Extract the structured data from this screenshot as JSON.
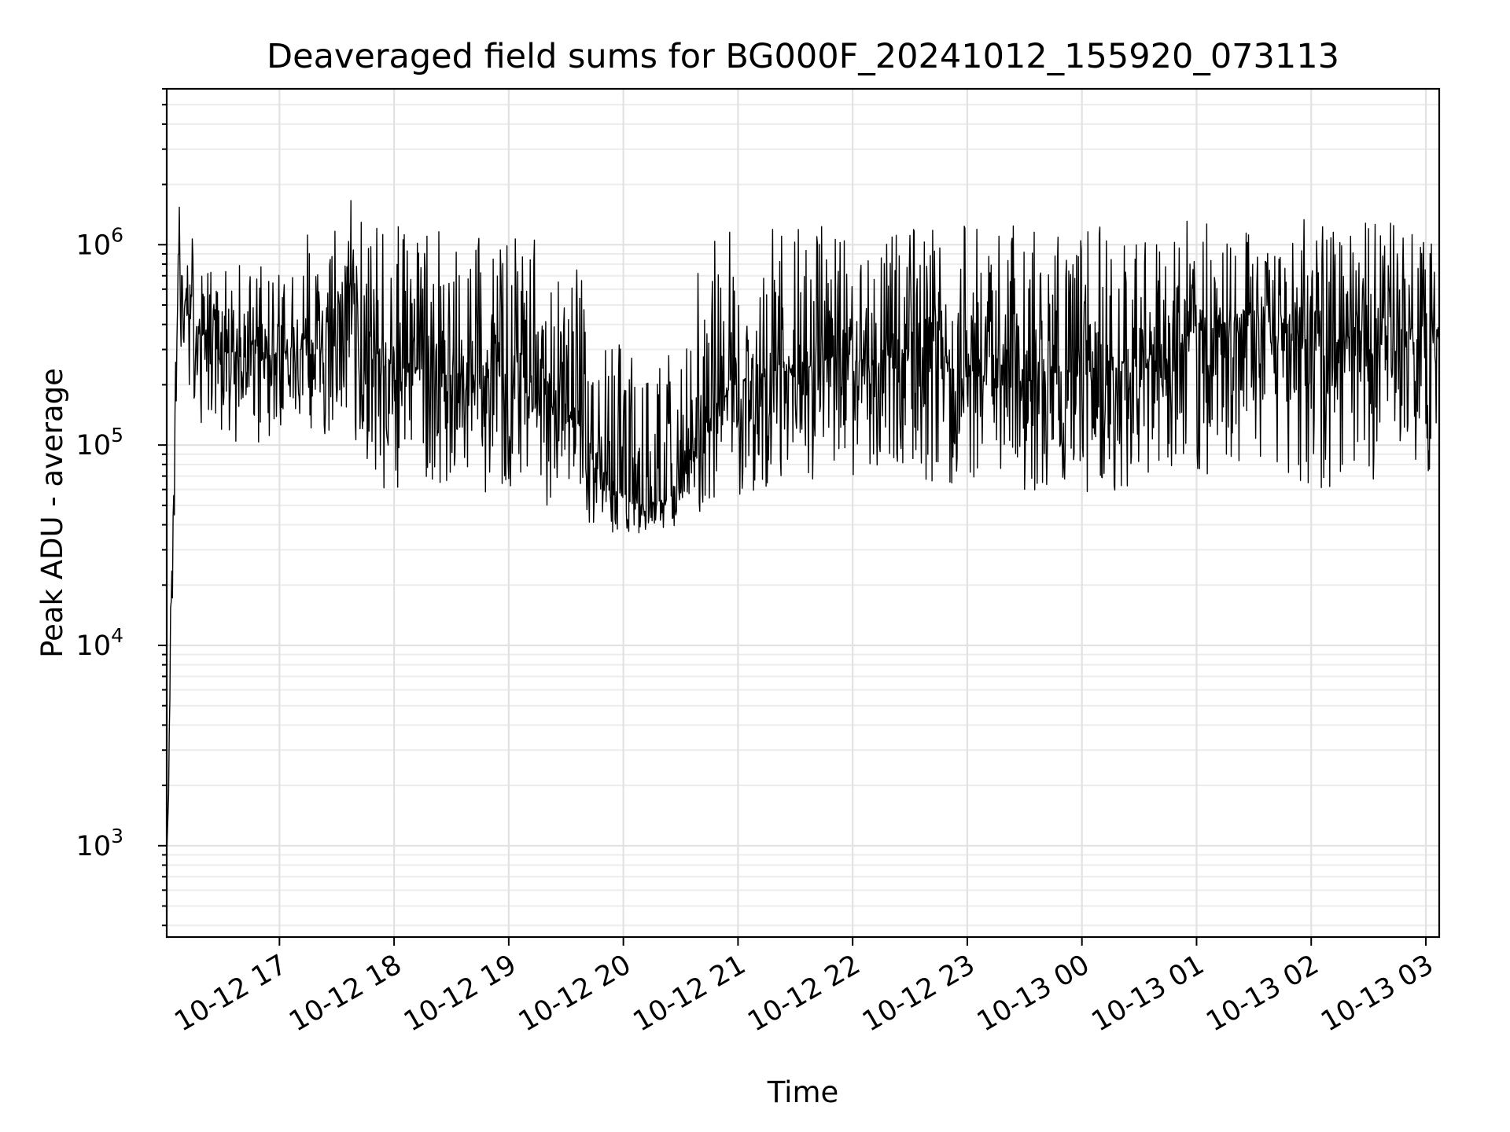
{
  "chart_data": {
    "type": "line",
    "title": "Deaveraged field sums for BG000F_20241012_155920_073113",
    "xlabel": "Time",
    "ylabel": "Peak ADU - average",
    "yscale": "log",
    "ylim": [
      350,
      6000000
    ],
    "xlim": [
      "2024-10-12 16:01",
      "2024-10-13 03:07"
    ],
    "grid": true,
    "line_color": "#000000",
    "x_ticks": [
      {
        "time": "2024-10-12 17:00",
        "label": "10-12 17"
      },
      {
        "time": "2024-10-12 18:00",
        "label": "10-12 18"
      },
      {
        "time": "2024-10-12 19:00",
        "label": "10-12 19"
      },
      {
        "time": "2024-10-12 20:00",
        "label": "10-12 20"
      },
      {
        "time": "2024-10-12 21:00",
        "label": "10-12 21"
      },
      {
        "time": "2024-10-12 22:00",
        "label": "10-12 22"
      },
      {
        "time": "2024-10-12 23:00",
        "label": "10-12 23"
      },
      {
        "time": "2024-10-13 00:00",
        "label": "10-13 00"
      },
      {
        "time": "2024-10-13 01:00",
        "label": "10-13 01"
      },
      {
        "time": "2024-10-13 02:00",
        "label": "10-13 02"
      },
      {
        "time": "2024-10-13 03:00",
        "label": "10-13 03"
      }
    ],
    "y_ticks": [
      {
        "value": 1000,
        "base": "10",
        "exp": "3"
      },
      {
        "value": 10000,
        "base": "10",
        "exp": "4"
      },
      {
        "value": 100000,
        "base": "10",
        "exp": "5"
      },
      {
        "value": 1000000,
        "base": "10",
        "exp": "6"
      }
    ],
    "series": [
      {
        "x": [
          "2024-10-12 16:01",
          "2024-10-12 16:02",
          "2024-10-12 16:03",
          "2024-10-12 16:05",
          "2024-10-12 16:07",
          "2024-10-12 16:10",
          "2024-10-12 16:15",
          "2024-10-12 16:20",
          "2024-10-12 16:26",
          "2024-10-12 16:30",
          "2024-10-12 16:35",
          "2024-10-12 16:40",
          "2024-10-12 16:45",
          "2024-10-12 16:50",
          "2024-10-12 16:55",
          "2024-10-12 17:00",
          "2024-10-12 17:05",
          "2024-10-12 17:10",
          "2024-10-12 17:15",
          "2024-10-12 17:20",
          "2024-10-12 17:25",
          "2024-10-12 17:30",
          "2024-10-12 17:35",
          "2024-10-12 17:38",
          "2024-10-12 17:40",
          "2024-10-12 17:45",
          "2024-10-12 17:50",
          "2024-10-12 17:55",
          "2024-10-12 18:00",
          "2024-10-12 18:10",
          "2024-10-12 18:20",
          "2024-10-12 18:30",
          "2024-10-12 18:40",
          "2024-10-12 18:50",
          "2024-10-12 19:00",
          "2024-10-12 19:10",
          "2024-10-12 19:20",
          "2024-10-12 19:30",
          "2024-10-12 19:40",
          "2024-10-12 19:50",
          "2024-10-12 20:00",
          "2024-10-12 20:10",
          "2024-10-12 20:20",
          "2024-10-12 20:30",
          "2024-10-12 20:40",
          "2024-10-12 20:50",
          "2024-10-12 21:00",
          "2024-10-12 21:15",
          "2024-10-12 21:30",
          "2024-10-12 21:45",
          "2024-10-12 22:00",
          "2024-10-12 22:15",
          "2024-10-12 22:30",
          "2024-10-12 22:45",
          "2024-10-12 23:00",
          "2024-10-12 23:15",
          "2024-10-12 23:30",
          "2024-10-12 23:45",
          "2024-10-13 00:00",
          "2024-10-13 00:15",
          "2024-10-13 00:30",
          "2024-10-13 00:45",
          "2024-10-13 01:00",
          "2024-10-13 01:15",
          "2024-10-13 01:30",
          "2024-10-13 01:45",
          "2024-10-13 02:00",
          "2024-10-13 02:15",
          "2024-10-13 02:30",
          "2024-10-13 02:45",
          "2024-10-13 03:00",
          "2024-10-13 03:07"
        ],
        "y": [
          900,
          1800,
          15000,
          45000,
          900000,
          500000,
          400000,
          350000,
          300000,
          280000,
          300000,
          260000,
          300000,
          280000,
          320000,
          280000,
          300000,
          320000,
          350000,
          300000,
          330000,
          350000,
          500000,
          700000,
          350000,
          300000,
          280000,
          260000,
          250000,
          230000,
          240000,
          220000,
          240000,
          230000,
          220000,
          210000,
          200000,
          160000,
          110000,
          65000,
          55000,
          50000,
          55000,
          65000,
          110000,
          170000,
          210000,
          230000,
          240000,
          250000,
          260000,
          270000,
          270000,
          260000,
          250000,
          240000,
          240000,
          230000,
          230000,
          240000,
          250000,
          270000,
          400000,
          450000,
          420000,
          380000,
          330000,
          300000,
          300000,
          320000,
          350000,
          380000
        ],
        "y_min": [
          900,
          1800,
          9000,
          30000,
          300000,
          150000,
          120000,
          100000,
          90000,
          90000,
          100000,
          90000,
          110000,
          100000,
          110000,
          100000,
          100000,
          110000,
          120000,
          100000,
          110000,
          120000,
          150000,
          200000,
          100000,
          70000,
          65000,
          60000,
          55000,
          55000,
          60000,
          55000,
          60000,
          55000,
          55000,
          55000,
          50000,
          45000,
          42000,
          38000,
          35000,
          36000,
          38000,
          40000,
          45000,
          50000,
          55000,
          60000,
          65000,
          65000,
          65000,
          68000,
          68000,
          65000,
          62000,
          60000,
          60000,
          58000,
          55000,
          58000,
          60000,
          62000,
          65000,
          68000,
          68000,
          65000,
          62000,
          60000,
          60000,
          62000,
          68000,
          85000
        ],
        "y_max": [
          900,
          1800,
          20000,
          180000,
          1800000,
          1400000,
          1200000,
          1000000,
          900000,
          800000,
          850000,
          800000,
          850000,
          800000,
          1000000,
          800000,
          900000,
          1000000,
          1200000,
          1000000,
          1100000,
          1200000,
          1500000,
          2000000,
          1400000,
          1300000,
          1300000,
          1300000,
          1300000,
          1200000,
          1200000,
          1200000,
          1200000,
          1150000,
          1100000,
          1100000,
          1000000,
          900000,
          700000,
          400000,
          300000,
          250000,
          280000,
          350000,
          800000,
          1200000,
          1200000,
          1200000,
          1250000,
          1250000,
          1250000,
          1300000,
          1300000,
          1300000,
          1250000,
          1250000,
          1250000,
          1250000,
          1250000,
          1250000,
          1250000,
          1250000,
          1400000,
          1500000,
          1450000,
          1400000,
          1350000,
          1300000,
          1300000,
          1300000,
          1300000,
          1300000
        ]
      }
    ]
  }
}
